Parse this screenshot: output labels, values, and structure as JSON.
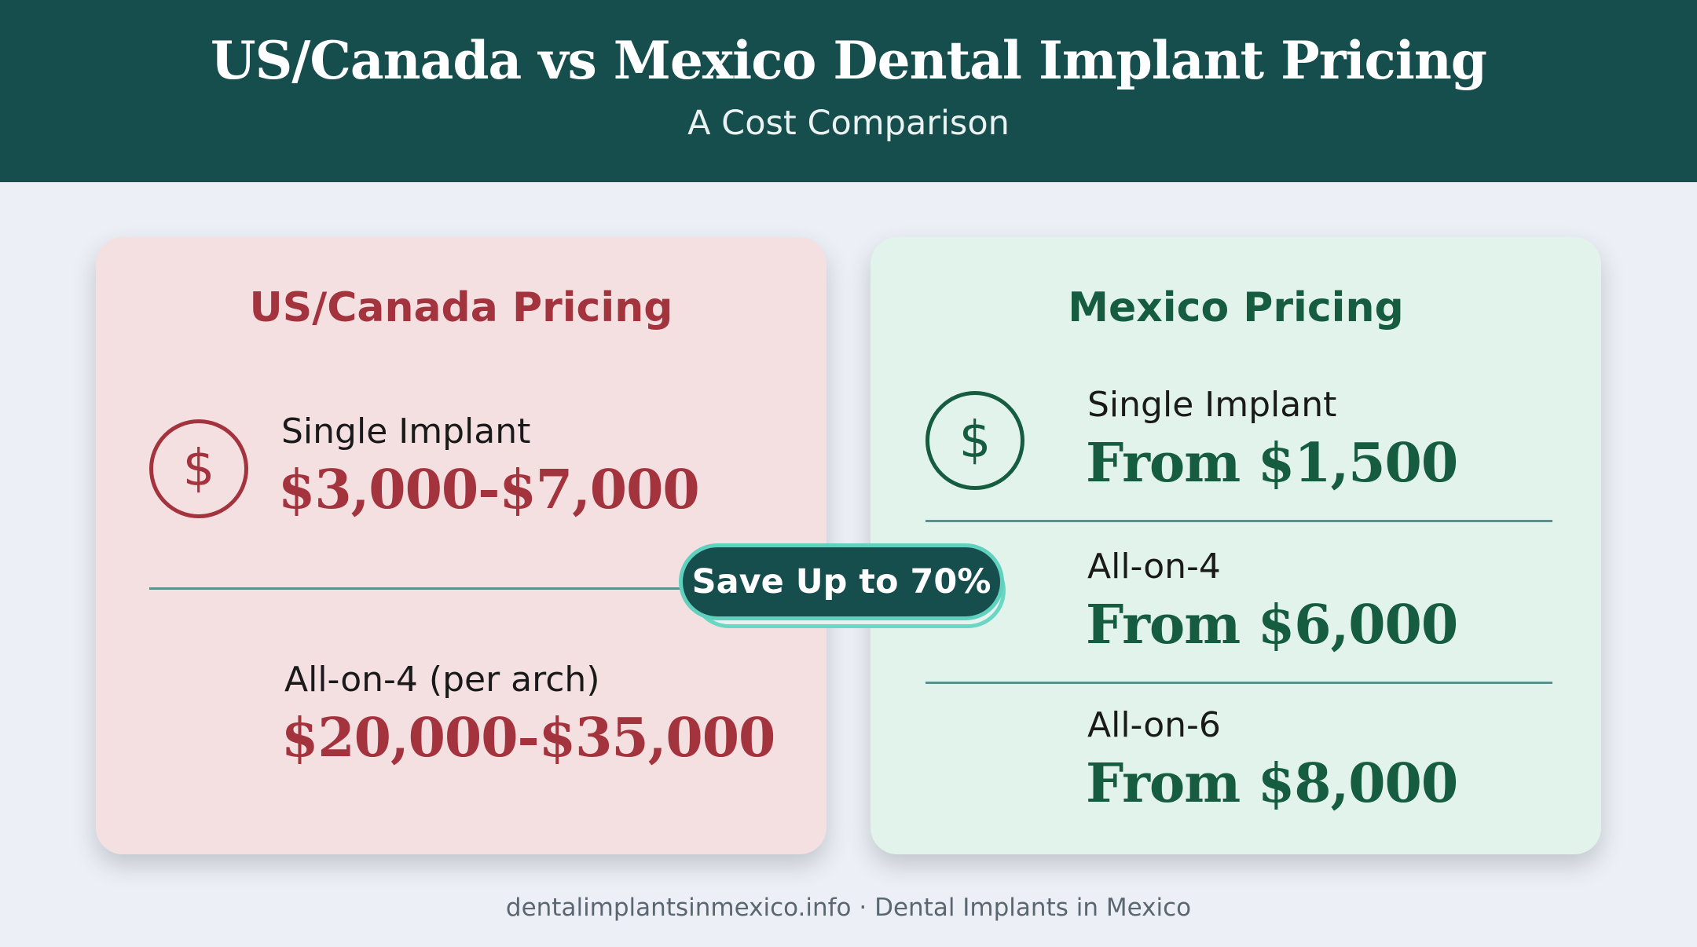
{
  "header": {
    "title": "US/Canada vs Mexico Dental Implant Pricing",
    "subtitle": "A Cost Comparison"
  },
  "us_card": {
    "title": "US/Canada Pricing",
    "icon": "dollar-circle-icon",
    "items": [
      {
        "label": "Single Implant",
        "price": "$3,000-$7,000"
      },
      {
        "label": "All-on-4 (per arch)",
        "price": "$20,000-$35,000"
      }
    ]
  },
  "mexico_card": {
    "title": "Mexico Pricing",
    "icon": "dollar-circle-icon",
    "items": [
      {
        "label": "Single Implant",
        "price": "From $1,500"
      },
      {
        "label": "All-on-4",
        "price": "From $6,000"
      },
      {
        "label": "All-on-6",
        "price": "From $8,000"
      }
    ]
  },
  "badge": {
    "label": "Save Up to 70%"
  },
  "footer": {
    "text": "dentalimplantsinmexico.info · Dental Implants in Mexico"
  },
  "colors": {
    "header_bg": "#164d4d",
    "page_bg": "#ecf0f6",
    "us_card_bg": "#f4dfe1",
    "us_accent": "#a3343e",
    "mexico_card_bg": "#e1f3ea",
    "mexico_accent": "#165c40",
    "badge_bg": "#164d4d",
    "badge_outline": "#5fd1be"
  }
}
